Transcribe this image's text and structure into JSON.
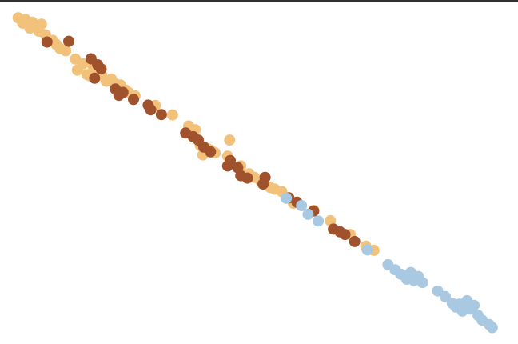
{
  "chart_data": {
    "type": "scatter",
    "title": "",
    "xlabel": "",
    "ylabel": "",
    "axes_visible": false,
    "grid": false,
    "legend": "none",
    "xlim": [
      0,
      100
    ],
    "ylim": [
      0,
      100
    ],
    "series": [
      {
        "color": "#f2c27a",
        "points": [
          [
            2.8,
            95.9
          ],
          [
            3.7,
            94.3
          ],
          [
            4.2,
            95.4
          ],
          [
            5.1,
            92.8
          ],
          [
            5.6,
            94.6
          ],
          [
            6.3,
            93.3
          ],
          [
            6.9,
            91.9
          ],
          [
            7.4,
            94.0
          ],
          [
            8.2,
            90.8
          ],
          [
            9.6,
            89.2
          ],
          [
            10.3,
            88.0
          ],
          [
            11.1,
            86.7
          ],
          [
            12.2,
            86.1
          ],
          [
            14.1,
            83.6
          ],
          [
            14.5,
            80.3
          ],
          [
            15.6,
            82.2
          ],
          [
            16.4,
            79.0
          ],
          [
            17.0,
            78.6
          ],
          [
            17.6,
            81.5
          ],
          [
            18.5,
            80.8
          ],
          [
            19.3,
            78.8
          ],
          [
            20.2,
            77.0
          ],
          [
            21.2,
            77.7
          ],
          [
            22.1,
            76.2
          ],
          [
            23.0,
            75.9
          ],
          [
            24.0,
            74.4
          ],
          [
            24.7,
            73.6
          ],
          [
            25.9,
            72.7
          ],
          [
            29.9,
            69.8
          ],
          [
            33.3,
            67.0
          ],
          [
            36.5,
            63.7
          ],
          [
            37.8,
            62.6
          ],
          [
            38.8,
            57.9
          ],
          [
            39.3,
            55.1
          ],
          [
            40.2,
            57.0
          ],
          [
            40.9,
            56.5
          ],
          [
            41.7,
            55.7
          ],
          [
            44.2,
            54.7
          ],
          [
            44.6,
            59.5
          ],
          [
            46.8,
            51.8
          ],
          [
            47.2,
            49.3
          ],
          [
            48.4,
            49.5
          ],
          [
            49.5,
            48.4
          ],
          [
            50.7,
            47.4
          ],
          [
            51.3,
            46.7
          ],
          [
            52.6,
            45.4
          ],
          [
            53.5,
            44.9
          ],
          [
            54.9,
            44.2
          ],
          [
            57.2,
            40.7
          ],
          [
            61.2,
            38.6
          ],
          [
            64.5,
            35.5
          ],
          [
            68.4,
            31.4
          ],
          [
            71.5,
            27.9
          ],
          [
            73.1,
            26.7
          ]
        ]
      },
      {
        "color": "#a0522d",
        "points": [
          [
            8.5,
            88.7
          ],
          [
            12.8,
            88.9
          ],
          [
            17.2,
            83.7
          ],
          [
            17.9,
            77.9
          ],
          [
            18.5,
            81.9
          ],
          [
            19.2,
            80.7
          ],
          [
            22.0,
            74.7
          ],
          [
            22.7,
            72.8
          ],
          [
            23.5,
            73.7
          ],
          [
            25.6,
            71.6
          ],
          [
            28.5,
            69.9
          ],
          [
            29.0,
            68.5
          ],
          [
            31.1,
            67.1
          ],
          [
            35.9,
            61.6
          ],
          [
            37.4,
            60.5
          ],
          [
            38.4,
            59.5
          ],
          [
            39.5,
            57.4
          ],
          [
            40.8,
            56.0
          ],
          [
            44.2,
            51.8
          ],
          [
            44.7,
            53.4
          ],
          [
            46.2,
            51.3
          ],
          [
            46.8,
            48.9
          ],
          [
            48.1,
            48.2
          ],
          [
            51.2,
            46.4
          ],
          [
            51.6,
            48.4
          ],
          [
            56.3,
            42.3
          ],
          [
            57.9,
            41.0
          ],
          [
            61.2,
            38.4
          ],
          [
            65.1,
            33.0
          ],
          [
            66.4,
            32.2
          ],
          [
            67.4,
            31.4
          ],
          [
            69.3,
            29.3
          ]
        ]
      },
      {
        "color": "#a9c9e2",
        "points": [
          [
            55.8,
            42.2
          ],
          [
            58.8,
            40.0
          ],
          [
            60.1,
            37.4
          ],
          [
            62.1,
            35.4
          ],
          [
            71.8,
            26.8
          ],
          [
            75.9,
            22.4
          ],
          [
            77.3,
            20.9
          ],
          [
            78.4,
            19.6
          ],
          [
            79.2,
            19.1
          ],
          [
            79.6,
            18.1
          ],
          [
            80.4,
            20.1
          ],
          [
            81.0,
            17.7
          ],
          [
            81.9,
            18.9
          ],
          [
            82.7,
            17.1
          ],
          [
            85.7,
            14.6
          ],
          [
            87.2,
            12.9
          ],
          [
            88.6,
            10.9
          ],
          [
            89.3,
            9.8
          ],
          [
            90.0,
            10.7
          ],
          [
            90.6,
            8.6
          ],
          [
            91.5,
            11.7
          ],
          [
            92.1,
            9.2
          ],
          [
            92.9,
            10.3
          ],
          [
            93.7,
            7.3
          ],
          [
            94.5,
            5.9
          ],
          [
            95.9,
            4.6
          ],
          [
            96.5,
            3.7
          ]
        ]
      }
    ]
  }
}
